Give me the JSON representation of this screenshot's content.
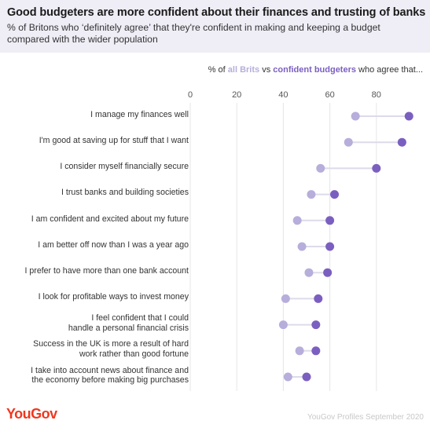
{
  "title": "Good budgeters are more confident about their finances and trusting of banks",
  "subtitle": "% of Britons who ‘definitely agree’ that they're confident in making and keeping a budget compared with the wider population",
  "legend": {
    "prefix": "% of ",
    "series_a": "all Brits",
    "middle": " vs ",
    "series_b": "confident budgeters",
    "suffix": " who agree that..."
  },
  "brand": "YouGov",
  "source": "YouGov Profiles September 2020",
  "colors": {
    "all_brits": "#b7aedb",
    "confident_budgeters": "#7b5fc0",
    "connector": "#dddbe8",
    "header_bg": "#efedf6",
    "brand": "#f0371e"
  },
  "chart_data": {
    "type": "dumbbell",
    "xlim": [
      0,
      100
    ],
    "ticks": [
      0,
      20,
      40,
      60,
      80
    ],
    "grid": true,
    "categories": [
      [
        "I manage my finances well"
      ],
      [
        "I'm good at saving up for stuff that I want"
      ],
      [
        "I consider myself financially secure"
      ],
      [
        "I trust banks and building societies"
      ],
      [
        "I am confident and excited about my future"
      ],
      [
        "I am better off now than I was a year ago"
      ],
      [
        "I prefer to have more than one bank account"
      ],
      [
        "I look for profitable ways to invest money"
      ],
      [
        "I feel confident that I could",
        "handle a personal financial crisis"
      ],
      [
        "Success in the UK is more a result of hard",
        "work rather than good fortune"
      ],
      [
        "I take into account news about finance and",
        "the economy before making big purchases"
      ]
    ],
    "series": [
      {
        "name": "all Brits",
        "values": [
          71,
          68,
          56,
          52,
          46,
          48,
          51,
          41,
          40,
          47,
          42
        ]
      },
      {
        "name": "confident budgeters",
        "values": [
          94,
          91,
          80,
          62,
          60,
          60,
          59,
          55,
          54,
          54,
          50
        ]
      }
    ]
  }
}
